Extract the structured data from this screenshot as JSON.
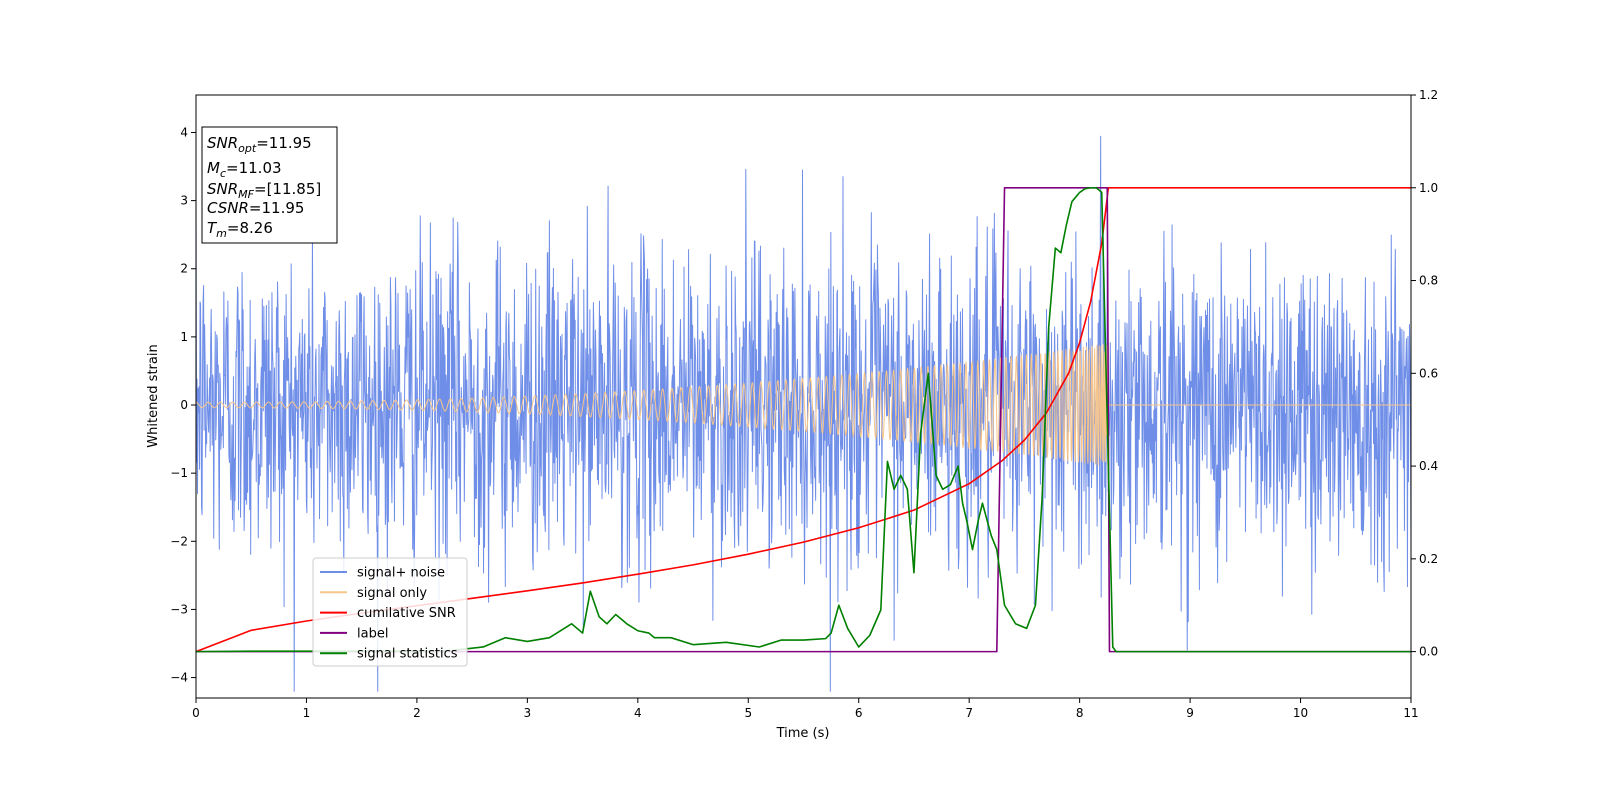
{
  "chart_data": {
    "type": "line",
    "xlabel": "Time (s)",
    "ylabel": "Whitened strain",
    "xlim": [
      0,
      11
    ],
    "ylim": [
      -4.3,
      4.55
    ],
    "y2lim": [
      -0.1,
      1.2
    ],
    "x_ticks": [
      "0",
      "1",
      "2",
      "3",
      "4",
      "5",
      "6",
      "7",
      "8",
      "9",
      "10",
      "11"
    ],
    "y_ticks": [
      "−4",
      "−3",
      "−2",
      "−1",
      "0",
      "1",
      "2",
      "3",
      "4"
    ],
    "y2_ticks": [
      "0.0",
      "0.2",
      "0.4",
      "0.6",
      "0.8",
      "1.0",
      "1.2"
    ],
    "grid": false,
    "legend_position": "lower-left",
    "annotation": {
      "lines": [
        {
          "symbol": "SNR",
          "sub": "opt",
          "text": "=11.95"
        },
        {
          "symbol": "M",
          "sub": "c",
          "text": "=11.03"
        },
        {
          "symbol": "SNR",
          "sub": "MF",
          "text": "=[11.85]"
        },
        {
          "symbol": "CSNR",
          "sub": "",
          "text": "=11.95"
        },
        {
          "symbol": "T",
          "sub": "m",
          "text": "=8.26"
        }
      ]
    },
    "series": [
      {
        "name": "signal+ noise",
        "color": "#6f8ee8",
        "axis": "left",
        "noise_std": 1.0,
        "noise_peak": 4.2
      },
      {
        "name": "signal only",
        "color": "#f7c58a",
        "axis": "left",
        "start_x": 0,
        "end_x": 8.26,
        "start_amp": 0.04,
        "end_amp": 0.9
      },
      {
        "name": "cumilative SNR",
        "color": "#ff0000",
        "axis": "right",
        "x": [
          0,
          0.5,
          1,
          1.5,
          2,
          2.5,
          3,
          3.5,
          4,
          4.5,
          5,
          5.5,
          6,
          6.5,
          7,
          7.3,
          7.5,
          7.7,
          7.9,
          8.0,
          8.1,
          8.2,
          8.26,
          9,
          10,
          11
        ],
        "values": [
          0.0,
          0.046,
          0.066,
          0.083,
          0.099,
          0.115,
          0.131,
          0.148,
          0.167,
          0.187,
          0.21,
          0.236,
          0.267,
          0.305,
          0.362,
          0.412,
          0.456,
          0.515,
          0.6,
          0.666,
          0.755,
          0.88,
          1.0,
          1.0,
          1.0,
          1.0
        ]
      },
      {
        "name": "label",
        "color": "#800080",
        "axis": "right",
        "x": [
          0,
          7.25,
          7.32,
          8.25,
          8.27,
          11
        ],
        "values": [
          0,
          0,
          1,
          1,
          0,
          0
        ]
      },
      {
        "name": "signal statistics",
        "color": "#008000",
        "axis": "right",
        "x": [
          0,
          0.5,
          1,
          1.5,
          2,
          2.3,
          2.6,
          2.7,
          2.8,
          3.0,
          3.2,
          3.4,
          3.5,
          3.57,
          3.65,
          3.72,
          3.8,
          3.9,
          4.0,
          4.1,
          4.15,
          4.3,
          4.5,
          4.8,
          5.1,
          5.3,
          5.5,
          5.7,
          5.75,
          5.82,
          5.9,
          6.0,
          6.1,
          6.2,
          6.26,
          6.32,
          6.38,
          6.44,
          6.5,
          6.56,
          6.63,
          6.7,
          6.76,
          6.83,
          6.9,
          6.94,
          6.98,
          7.03,
          7.08,
          7.12,
          7.2,
          7.25,
          7.32,
          7.42,
          7.52,
          7.6,
          7.66,
          7.72,
          7.78,
          7.83,
          7.88,
          7.93,
          8.0,
          8.05,
          8.1,
          8.15,
          8.2,
          8.25,
          8.3,
          8.33,
          9,
          10,
          11
        ],
        "values": [
          0.0,
          0.001,
          0.001,
          0.001,
          0.001,
          0.002,
          0.01,
          0.02,
          0.03,
          0.022,
          0.03,
          0.06,
          0.04,
          0.13,
          0.075,
          0.06,
          0.08,
          0.06,
          0.045,
          0.04,
          0.03,
          0.03,
          0.015,
          0.02,
          0.01,
          0.025,
          0.025,
          0.028,
          0.04,
          0.1,
          0.05,
          0.01,
          0.035,
          0.09,
          0.41,
          0.35,
          0.38,
          0.35,
          0.17,
          0.47,
          0.6,
          0.38,
          0.35,
          0.36,
          0.4,
          0.32,
          0.28,
          0.22,
          0.28,
          0.32,
          0.25,
          0.22,
          0.1,
          0.06,
          0.05,
          0.1,
          0.33,
          0.7,
          0.87,
          0.86,
          0.92,
          0.97,
          0.99,
          0.998,
          1.0,
          1.0,
          0.99,
          0.5,
          0.01,
          0.0,
          0.0,
          0.0,
          0.0
        ]
      }
    ]
  }
}
